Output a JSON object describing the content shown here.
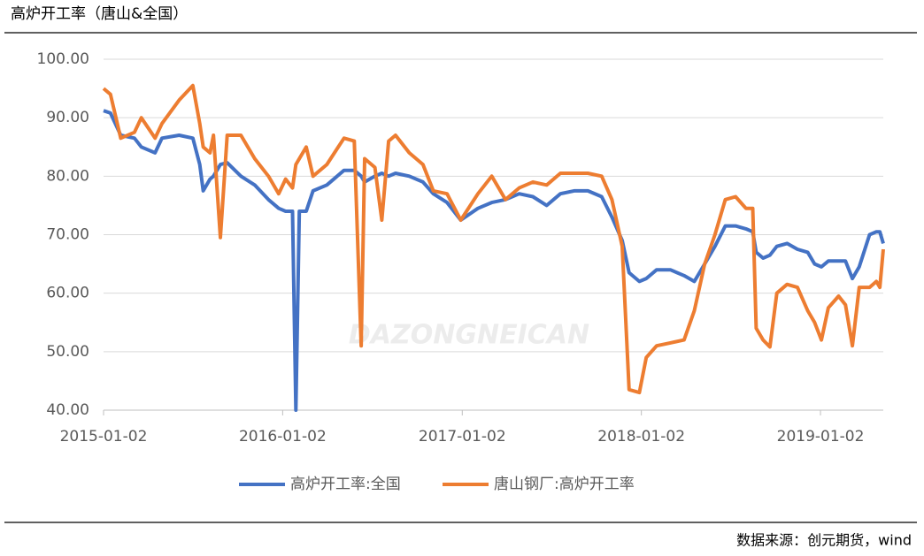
{
  "header": {
    "title": "高炉开工率（唐山&全国）"
  },
  "footer": {
    "source": "数据来源：创元期货，wind"
  },
  "chart_data": {
    "type": "line",
    "watermark": "DAZONGNEICAN",
    "x": [
      "2015-01-02",
      "2015-01-16",
      "2015-02-06",
      "2015-03-06",
      "2015-03-20",
      "2015-04-17",
      "2015-05-01",
      "2015-06-05",
      "2015-07-03",
      "2015-07-17",
      "2015-07-24",
      "2015-08-07",
      "2015-08-14",
      "2015-08-28",
      "2015-09-11",
      "2015-10-09",
      "2015-11-06",
      "2015-12-04",
      "2015-12-25",
      "2016-01-08",
      "2016-01-22",
      "2016-01-29",
      "2016-02-05",
      "2016-02-19",
      "2016-03-04",
      "2016-04-01",
      "2016-05-06",
      "2016-05-27",
      "2016-06-10",
      "2016-06-17",
      "2016-07-08",
      "2016-07-22",
      "2016-08-05",
      "2016-08-19",
      "2016-09-16",
      "2016-10-14",
      "2016-11-04",
      "2016-12-02",
      "2016-12-30",
      "2017-02-03",
      "2017-03-03",
      "2017-03-31",
      "2017-04-28",
      "2017-05-26",
      "2017-06-23",
      "2017-07-21",
      "2017-08-18",
      "2017-09-15",
      "2017-10-13",
      "2017-11-03",
      "2017-11-24",
      "2017-12-08",
      "2017-12-29",
      "2018-01-12",
      "2018-02-02",
      "2018-03-02",
      "2018-03-30",
      "2018-04-20",
      "2018-05-11",
      "2018-06-01",
      "2018-06-22",
      "2018-07-13",
      "2018-08-03",
      "2018-08-17",
      "2018-08-24",
      "2018-09-07",
      "2018-09-21",
      "2018-10-05",
      "2018-10-26",
      "2018-11-16",
      "2018-12-07",
      "2018-12-21",
      "2019-01-04",
      "2019-01-18",
      "2019-02-08",
      "2019-02-22",
      "2019-03-08",
      "2019-03-22",
      "2019-04-12",
      "2019-04-26",
      "2019-05-03",
      "2019-05-10"
    ],
    "series": [
      {
        "name": "高炉开工率:全国",
        "color": "#4472c4",
        "values": [
          91.2,
          90.8,
          87,
          86.5,
          85,
          84,
          86.5,
          87,
          86.5,
          82,
          77.5,
          79.5,
          80,
          82,
          82.3,
          80,
          78.5,
          76,
          74.5,
          74,
          74,
          40,
          74,
          74,
          77.5,
          78.5,
          81,
          81,
          80,
          79,
          80,
          80.5,
          80,
          80.5,
          80,
          79,
          77,
          75.5,
          72.5,
          74.5,
          75.5,
          76,
          77,
          76.5,
          75,
          77,
          77.5,
          77.5,
          76.5,
          73,
          69,
          63.5,
          62,
          62.5,
          64,
          64,
          63,
          62,
          65,
          68,
          71.5,
          71.5,
          71,
          70.5,
          67,
          66,
          66.5,
          68,
          68.5,
          67.5,
          67,
          65,
          64.5,
          65.5,
          65.5,
          65.5,
          62.5,
          64.5,
          70,
          70.5,
          70.5,
          68.5
        ]
      },
      {
        "name": "唐山钢厂:高炉开工率",
        "color": "#ed7d31",
        "values": [
          95,
          94,
          86.5,
          87.5,
          90,
          86.5,
          89,
          93,
          95.5,
          89,
          85,
          84,
          87,
          69.5,
          87,
          87,
          83,
          80,
          77,
          79.5,
          78,
          82,
          83,
          85,
          80,
          82,
          86.5,
          86,
          51,
          83,
          81.5,
          72.5,
          86,
          87,
          84,
          82,
          77.5,
          77,
          72.5,
          77,
          80,
          76,
          78,
          79,
          78.5,
          80.5,
          80.5,
          80.5,
          80,
          76,
          68,
          43.5,
          43,
          49,
          51,
          51.5,
          52,
          57,
          65,
          70,
          76,
          76.5,
          74.5,
          74.5,
          54,
          52,
          50.8,
          60,
          61.5,
          61,
          57,
          55,
          52,
          57.5,
          59.5,
          58,
          51,
          61,
          61,
          62,
          61,
          67.5
        ]
      }
    ],
    "xlim": [
      "2015-01-02",
      "2019-05-10"
    ],
    "xticks": [
      "2015-01-02",
      "2016-01-02",
      "2017-01-02",
      "2018-01-02",
      "2019-01-02"
    ],
    "ylim": [
      40,
      100
    ],
    "yticks": [
      {
        "value": 40,
        "label": "40.00"
      },
      {
        "value": 50,
        "label": "50.00"
      },
      {
        "value": 60,
        "label": "60.00"
      },
      {
        "value": 70,
        "label": "70.00"
      },
      {
        "value": 80,
        "label": "80.00"
      },
      {
        "value": 90,
        "label": "90.00"
      },
      {
        "value": 100,
        "label": "100.00"
      }
    ],
    "grid": true
  }
}
